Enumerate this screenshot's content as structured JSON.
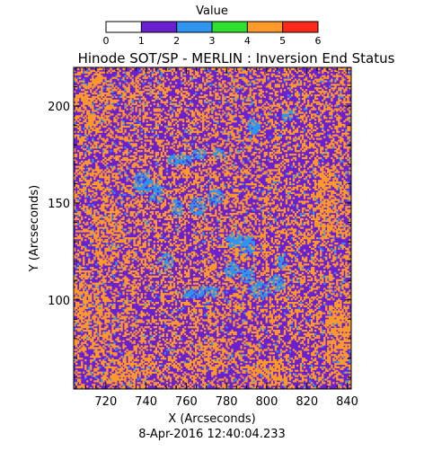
{
  "chart_data": {
    "type": "heatmap",
    "title": "Hinode SOT/SP - MERLIN : Inversion End Status",
    "xlabel": "X (Arcseconds)",
    "ylabel": "Y (Arcseconds)",
    "footer": "8-Apr-2016 12:40:04.233",
    "xlim": [
      704,
      842
    ],
    "ylim": [
      54,
      220
    ],
    "xticks": [
      720,
      740,
      760,
      780,
      800,
      820,
      840
    ],
    "yticks": [
      100,
      150,
      200
    ],
    "colorbar": {
      "label": "Value",
      "min": 0,
      "max": 6,
      "ticks": [
        0,
        1,
        2,
        3,
        4,
        5,
        6
      ],
      "bins": [
        {
          "from": 0,
          "to": 1,
          "color": "#ffffff"
        },
        {
          "from": 1,
          "to": 2,
          "color": "#6a1fd0"
        },
        {
          "from": 2,
          "to": 3,
          "color": "#2f95ee"
        },
        {
          "from": 3,
          "to": 4,
          "color": "#2fe02f"
        },
        {
          "from": 4,
          "to": 5,
          "color": "#ff9a2a"
        },
        {
          "from": 5,
          "to": 6,
          "color": "#ff2a1a"
        }
      ]
    },
    "dominant_values": [
      {
        "value": 1,
        "share": 0.56
      },
      {
        "value": 4,
        "share": 0.38
      },
      {
        "value": 2,
        "share": 0.06
      }
    ],
    "blue_regions": [
      {
        "x": 738,
        "y": 160,
        "rx": 5,
        "ry": 6
      },
      {
        "x": 745,
        "y": 155,
        "rx": 4,
        "ry": 5
      },
      {
        "x": 755,
        "y": 147,
        "rx": 3,
        "ry": 5
      },
      {
        "x": 765,
        "y": 148,
        "rx": 4,
        "ry": 5
      },
      {
        "x": 774,
        "y": 153,
        "rx": 4,
        "ry": 4
      },
      {
        "x": 784,
        "y": 130,
        "rx": 5,
        "ry": 4
      },
      {
        "x": 790,
        "y": 128,
        "rx": 4,
        "ry": 5
      },
      {
        "x": 796,
        "y": 105,
        "rx": 6,
        "ry": 4
      },
      {
        "x": 804,
        "y": 108,
        "rx": 5,
        "ry": 4
      },
      {
        "x": 807,
        "y": 120,
        "rx": 3,
        "ry": 4
      },
      {
        "x": 790,
        "y": 112,
        "rx": 4,
        "ry": 4
      },
      {
        "x": 782,
        "y": 115,
        "rx": 4,
        "ry": 4
      },
      {
        "x": 770,
        "y": 104,
        "rx": 6,
        "ry": 3
      },
      {
        "x": 762,
        "y": 103,
        "rx": 5,
        "ry": 3
      },
      {
        "x": 756,
        "y": 172,
        "rx": 6,
        "ry": 3
      },
      {
        "x": 766,
        "y": 175,
        "rx": 4,
        "ry": 3
      },
      {
        "x": 793,
        "y": 189,
        "rx": 3,
        "ry": 4
      },
      {
        "x": 776,
        "y": 175,
        "rx": 3,
        "ry": 3
      },
      {
        "x": 750,
        "y": 120,
        "rx": 3,
        "ry": 4
      },
      {
        "x": 810,
        "y": 195,
        "rx": 3,
        "ry": 3
      }
    ],
    "orange_regions": [
      {
        "x": 712,
        "y": 90,
        "rx": 10,
        "ry": 22
      },
      {
        "x": 715,
        "y": 200,
        "rx": 8,
        "ry": 15
      },
      {
        "x": 730,
        "y": 62,
        "rx": 12,
        "ry": 8
      },
      {
        "x": 720,
        "y": 135,
        "rx": 7,
        "ry": 18
      },
      {
        "x": 835,
        "y": 80,
        "rx": 7,
        "ry": 18
      },
      {
        "x": 830,
        "y": 150,
        "rx": 8,
        "ry": 20
      },
      {
        "x": 800,
        "y": 62,
        "rx": 10,
        "ry": 7
      },
      {
        "x": 770,
        "y": 70,
        "rx": 10,
        "ry": 8
      }
    ]
  }
}
